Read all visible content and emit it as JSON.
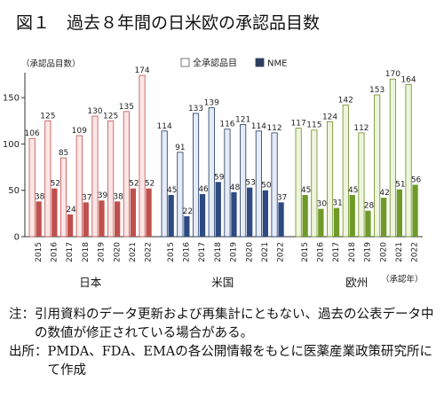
{
  "chart_data": {
    "type": "bar",
    "title": "図１　過去８年間の日米欧の承認品目数",
    "ylabel": "（承認品目数）",
    "xunit": "（承認年）",
    "ylim": [
      0,
      175
    ],
    "yticks": [
      0,
      50,
      100,
      150
    ],
    "grid": false,
    "legend_position": "top-right",
    "series": [
      {
        "key": "all",
        "name": "全承認品目"
      },
      {
        "key": "nme",
        "name": "NME"
      }
    ],
    "groups": [
      {
        "name": "日本",
        "years": [
          "2015",
          "2016",
          "2017",
          "2018",
          "2019",
          "2020",
          "2021",
          "2022"
        ],
        "all": [
          106,
          125,
          85,
          109,
          130,
          125,
          135,
          174
        ],
        "nme": [
          38,
          52,
          24,
          37,
          39,
          38,
          52,
          52
        ]
      },
      {
        "name": "米国",
        "years": [
          "2015",
          "2016",
          "2017",
          "2018",
          "2019",
          "2020",
          "2021",
          "2022"
        ],
        "all": [
          114,
          91,
          133,
          139,
          116,
          121,
          114,
          112
        ],
        "nme": [
          45,
          22,
          46,
          59,
          48,
          53,
          50,
          37
        ]
      },
      {
        "name": "欧州",
        "years": [
          "2015",
          "2016",
          "2017",
          "2018",
          "2019",
          "2020",
          "2021",
          "2022"
        ],
        "all": [
          117,
          115,
          124,
          142,
          112,
          153,
          170,
          164
        ],
        "nme": [
          45,
          30,
          31,
          45,
          28,
          42,
          51,
          56
        ]
      }
    ],
    "colors": {
      "日本": {
        "all_fill": "#fce6e6",
        "all_edge": "#c0504d",
        "nme_fill": "#c0504d"
      },
      "米国": {
        "all_fill": "#e6ecf7",
        "all_edge": "#1f3864",
        "nme_fill": "#2e4a82"
      },
      "欧州": {
        "all_fill": "#eef4dd",
        "all_edge": "#6b8e23",
        "nme_fill": "#6f9a2a"
      }
    }
  },
  "notes": {
    "note_label": "注：",
    "note_text": "引用資料のデータ更新および再集計にともない、過去の公表データ中の数値が修正されている場合がある。",
    "source_label": "出所：",
    "source_text": "PMDA、FDA、EMAの各公開情報をもとに医薬産業政策研究所にて作成"
  }
}
